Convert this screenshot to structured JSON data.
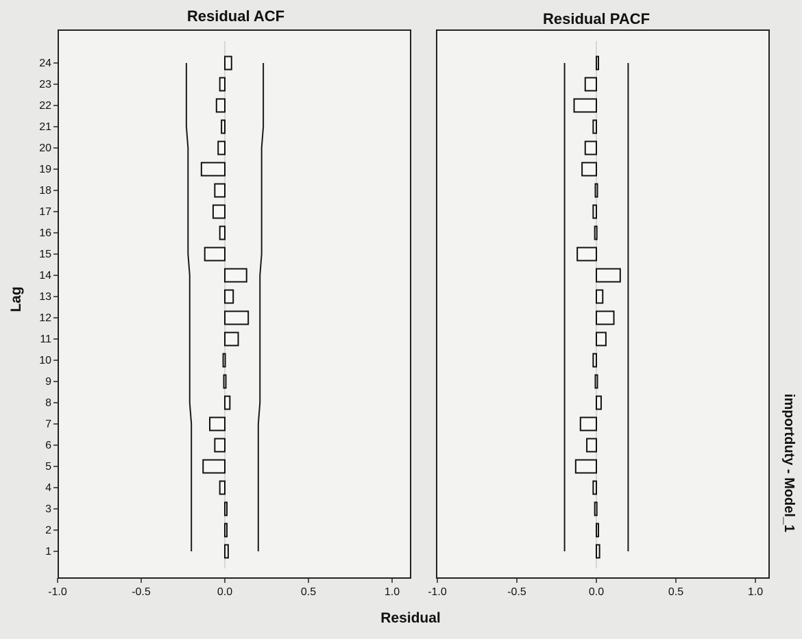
{
  "side_label": "importduty - Model_1",
  "chart_data": [
    {
      "type": "bar",
      "title": "Residual ACF",
      "xlabel": "Residual",
      "ylabel": "Lag",
      "orientation": "horizontal",
      "categories": [
        "1",
        "2",
        "3",
        "4",
        "5",
        "6",
        "7",
        "8",
        "9",
        "10",
        "11",
        "12",
        "13",
        "14",
        "15",
        "16",
        "17",
        "18",
        "19",
        "20",
        "21",
        "22",
        "23",
        "24"
      ],
      "values": [
        0.02,
        0.01,
        0.01,
        -0.03,
        -0.13,
        -0.06,
        -0.09,
        0.03,
        0.0,
        -0.01,
        0.08,
        0.14,
        0.05,
        0.13,
        -0.12,
        -0.03,
        -0.07,
        -0.06,
        -0.14,
        -0.04,
        -0.02,
        -0.05,
        -0.03,
        0.04
      ],
      "upper_limit": [
        0.2,
        0.2,
        0.2,
        0.2,
        0.2,
        0.2,
        0.2,
        0.21,
        0.21,
        0.21,
        0.21,
        0.21,
        0.21,
        0.21,
        0.22,
        0.22,
        0.22,
        0.22,
        0.22,
        0.22,
        0.23,
        0.23,
        0.23,
        0.23
      ],
      "lower_limit": [
        -0.2,
        -0.2,
        -0.2,
        -0.2,
        -0.2,
        -0.2,
        -0.2,
        -0.21,
        -0.21,
        -0.21,
        -0.21,
        -0.21,
        -0.21,
        -0.21,
        -0.22,
        -0.22,
        -0.22,
        -0.22,
        -0.22,
        -0.22,
        -0.23,
        -0.23,
        -0.23,
        -0.23
      ],
      "xlim": [
        -1.0,
        1.0
      ],
      "xticks": [
        "-1.0",
        "-0.5",
        "0.0",
        "0.5",
        "1.0"
      ]
    },
    {
      "type": "bar",
      "title": "Residual PACF",
      "xlabel": "Residual",
      "ylabel": "Lag",
      "orientation": "horizontal",
      "categories": [
        "1",
        "2",
        "3",
        "4",
        "5",
        "6",
        "7",
        "8",
        "9",
        "10",
        "11",
        "12",
        "13",
        "14",
        "15",
        "16",
        "17",
        "18",
        "19",
        "20",
        "21",
        "22",
        "23",
        "24"
      ],
      "values": [
        0.02,
        0.01,
        -0.01,
        -0.02,
        -0.13,
        -0.06,
        -0.1,
        0.03,
        0.0,
        -0.02,
        0.06,
        0.11,
        0.04,
        0.15,
        -0.12,
        -0.01,
        -0.02,
        0.0,
        -0.09,
        -0.07,
        -0.02,
        -0.14,
        -0.07,
        0.01
      ],
      "upper_limit": [
        0.2,
        0.2,
        0.2,
        0.2,
        0.2,
        0.2,
        0.2,
        0.2,
        0.2,
        0.2,
        0.2,
        0.2,
        0.2,
        0.2,
        0.2,
        0.2,
        0.2,
        0.2,
        0.2,
        0.2,
        0.2,
        0.2,
        0.2,
        0.2
      ],
      "lower_limit": [
        -0.2,
        -0.2,
        -0.2,
        -0.2,
        -0.2,
        -0.2,
        -0.2,
        -0.2,
        -0.2,
        -0.2,
        -0.2,
        -0.2,
        -0.2,
        -0.2,
        -0.2,
        -0.2,
        -0.2,
        -0.2,
        -0.2,
        -0.2,
        -0.2,
        -0.2,
        -0.2,
        -0.2
      ],
      "xlim": [
        -1.0,
        1.0
      ],
      "xticks": [
        "-1.0",
        "-0.5",
        "0.0",
        "0.5",
        "1.0"
      ]
    }
  ]
}
